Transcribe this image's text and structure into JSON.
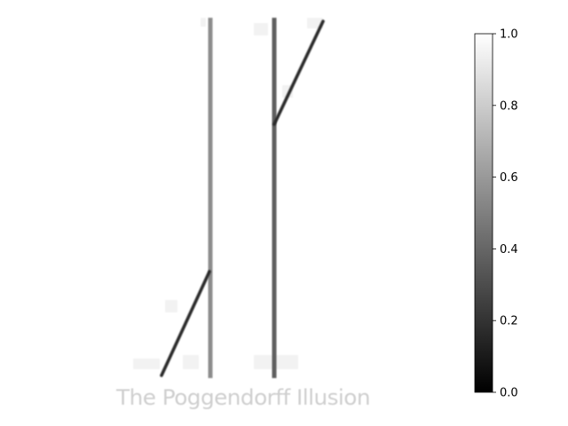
{
  "illusion": {
    "caption": "The Poggendorff Illusion"
  },
  "colorbar": {
    "colormap": "gray",
    "colors": {
      "low": "#000000",
      "high": "#ffffff"
    },
    "range": [
      0.0,
      1.0
    ],
    "ticks": [
      "0.0",
      "0.2",
      "0.4",
      "0.6",
      "0.8",
      "1.0"
    ]
  }
}
